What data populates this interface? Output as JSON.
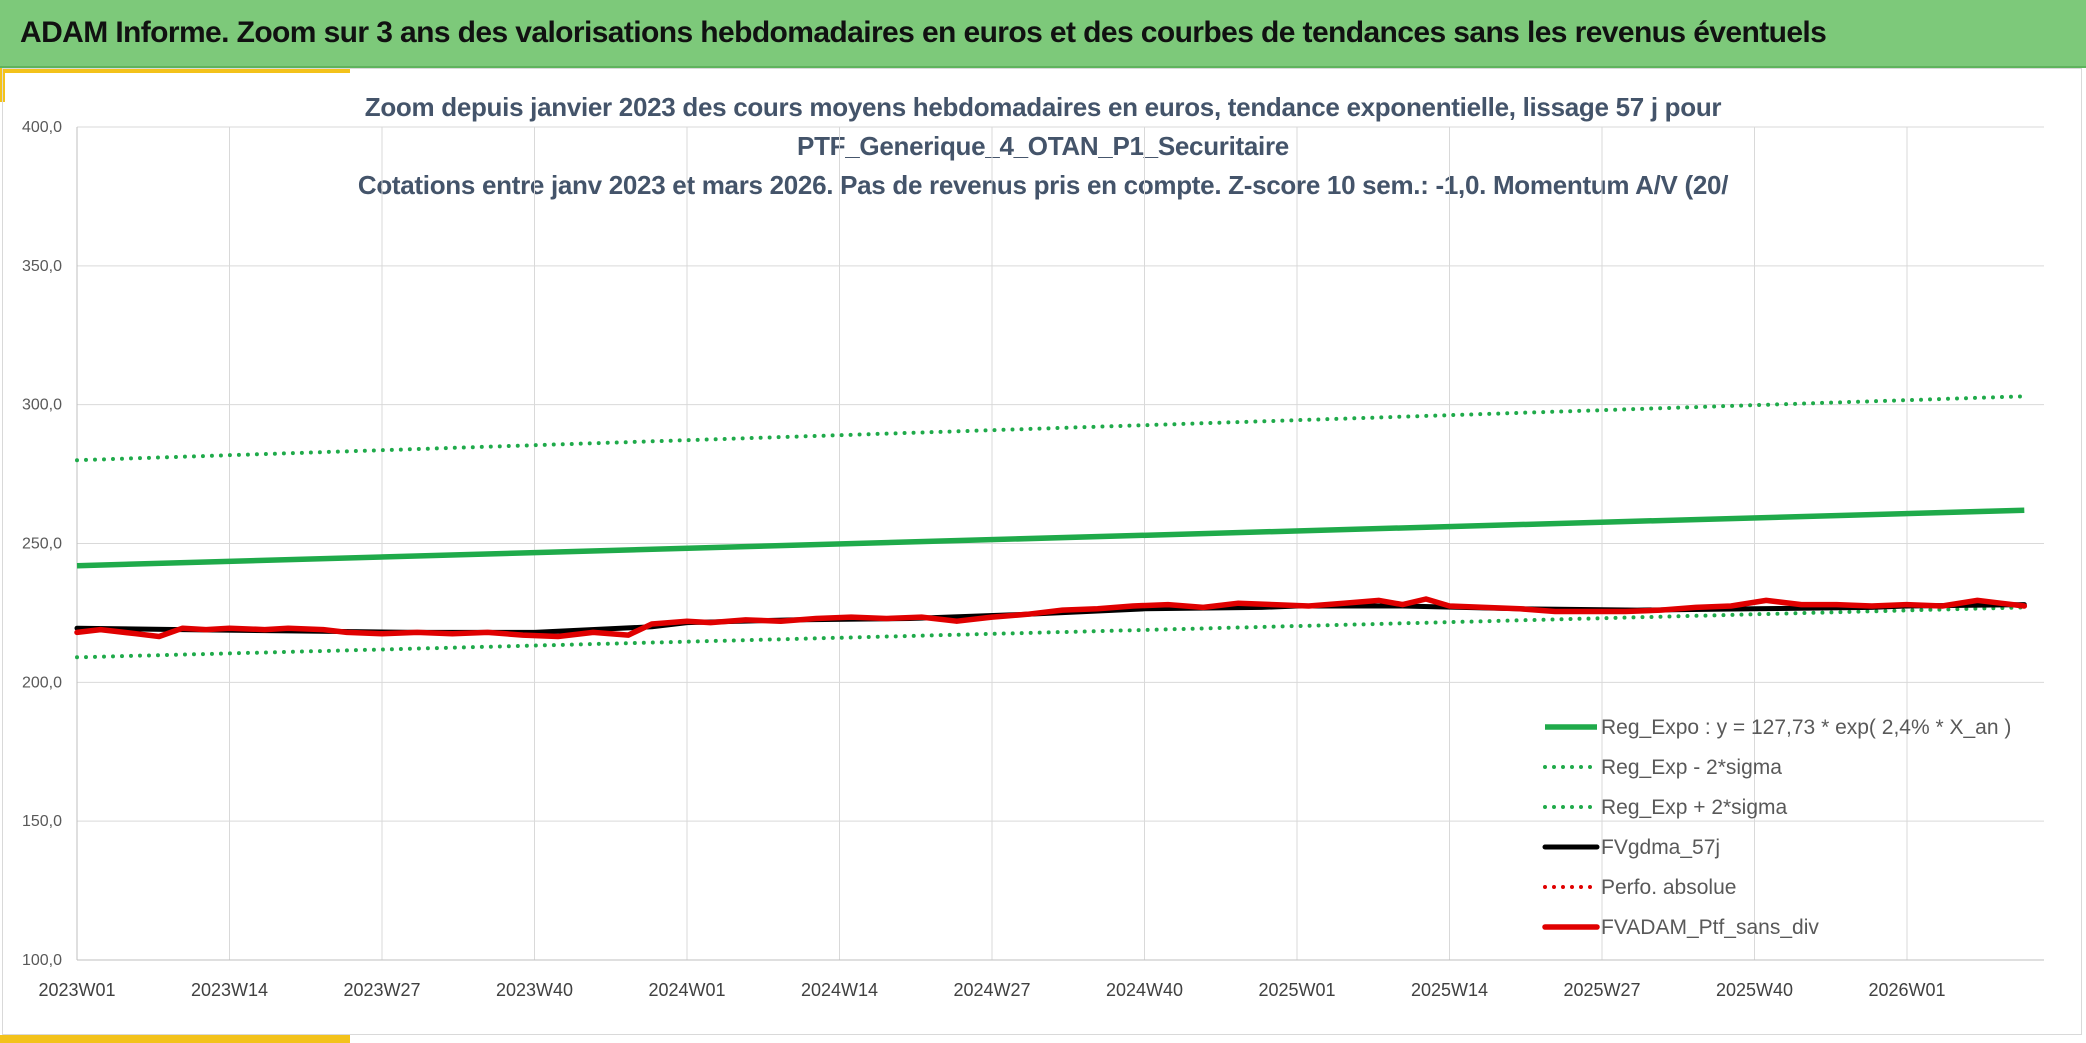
{
  "header": {
    "title": "ADAM Informe. Zoom sur 3 ans des valorisations hebdomadaires en euros et des courbes de tendances sans les revenus éventuels"
  },
  "chart": {
    "title_lines": [
      "Zoom depuis janvier 2023 des cours moyens hebdomadaires en euros, tendance exponentielle, lissage 57 j pour",
      "PTF_Generique_4_OTAN_P1_Securitaire",
      "Cotations entre janv 2023 et mars 2026. Pas de revenus pris en compte. Z-score 10 sem.: -1,0. Momentum A/V (20/"
    ]
  },
  "colors": {
    "header_bg": "#7dc97a",
    "accent": "#f3c21b",
    "reg_green": "#1faa4a",
    "black": "#000000",
    "red": "#e00000",
    "grid": "#d9d9d9"
  },
  "chart_data": {
    "type": "line",
    "title": "Zoom depuis janvier 2023 des cours moyens hebdomadaires en euros, tendance exponentielle, lissage 57 j pour PTF_Generique_4_OTAN_P1_Securitaire Cotations entre janv 2023 et mars 2026. Pas de revenus pris en compte. Z-score 10 sem.: -1,0. Momentum A/V (20/",
    "ylim": [
      100,
      400
    ],
    "y_ticks": [
      "400,0",
      "350,0",
      "300,0",
      "250,0",
      "200,0",
      "150,0",
      "100,0"
    ],
    "x_ticks": [
      "2023W01",
      "2023W14",
      "2023W27",
      "2023W40",
      "2024W01",
      "2024W14",
      "2024W27",
      "2024W40",
      "2025W01",
      "2025W14",
      "2025W27",
      "2025W40",
      "2026W01"
    ],
    "x_range": [
      "2023W01",
      "2026W11"
    ],
    "grid": true,
    "legend_position": "bottom-right",
    "series": [
      {
        "name": "Reg_Expo : y = 127,73 * exp( 2,4% *  X_an )",
        "color": "#1faa4a",
        "style": "solid",
        "x": [
          "2023W01",
          "2026W11"
        ],
        "values": [
          242.0,
          262.0
        ]
      },
      {
        "name": "Reg_Exp - 2*sigma",
        "color": "#1faa4a",
        "style": "dotted",
        "x": [
          "2023W01",
          "2026W11"
        ],
        "values": [
          209.0,
          227.0
        ]
      },
      {
        "name": "Reg_Exp + 2*sigma",
        "color": "#1faa4a",
        "style": "dotted",
        "x": [
          "2023W01",
          "2026W11"
        ],
        "values": [
          280.0,
          303.0
        ]
      },
      {
        "name": "FVgdma_57j",
        "color": "#000000",
        "style": "solid",
        "x": [
          "2023W01",
          "2023W10",
          "2023W20",
          "2023W30",
          "2023W40",
          "2023W50",
          "2024W01",
          "2024W10",
          "2024W20",
          "2024W30",
          "2024W40",
          "2024W50",
          "2025W01",
          "2025W10",
          "2025W20",
          "2025W30",
          "2025W40",
          "2025W50",
          "2026W01",
          "2026W11"
        ],
        "values": [
          219.5,
          219.0,
          218.5,
          218.0,
          218.0,
          220.0,
          221.5,
          222.5,
          223.0,
          224.5,
          226.5,
          227.0,
          227.5,
          227.5,
          226.5,
          226.0,
          226.5,
          227.0,
          227.5,
          228.0
        ]
      },
      {
        "name": "Perfo. absolue",
        "color": "#e00000",
        "style": "dotted",
        "x": [],
        "values": []
      },
      {
        "name": "FVADAM_Ptf_sans_div",
        "color": "#e00000",
        "style": "solid",
        "x": [
          "2023W01",
          "2023W03",
          "2023W06",
          "2023W08",
          "2023W10",
          "2023W12",
          "2023W14",
          "2023W17",
          "2023W19",
          "2023W22",
          "2023W24",
          "2023W27",
          "2023W30",
          "2023W33",
          "2023W36",
          "2023W39",
          "2023W42",
          "2023W45",
          "2023W48",
          "2023W50",
          "2024W01",
          "2024W03",
          "2024W06",
          "2024W09",
          "2024W12",
          "2024W15",
          "2024W18",
          "2024W21",
          "2024W24",
          "2024W27",
          "2024W30",
          "2024W33",
          "2024W36",
          "2024W39",
          "2024W42",
          "2024W45",
          "2024W48",
          "2024W51",
          "2025W02",
          "2025W05",
          "2025W08",
          "2025W10",
          "2025W12",
          "2025W14",
          "2025W17",
          "2025W20",
          "2025W23",
          "2025W26",
          "2025W29",
          "2025W32",
          "2025W35",
          "2025W38",
          "2025W41",
          "2025W44",
          "2025W47",
          "2025W50",
          "2026W01",
          "2026W04",
          "2026W07",
          "2026W09",
          "2026W11"
        ],
        "values": [
          218.0,
          219.0,
          217.5,
          216.5,
          219.5,
          219.0,
          219.5,
          219.0,
          219.5,
          219.0,
          218.0,
          217.5,
          218.0,
          217.5,
          218.0,
          217.0,
          216.5,
          218.0,
          217.0,
          221.0,
          222.0,
          221.5,
          222.5,
          222.0,
          223.0,
          223.5,
          223.0,
          223.5,
          222.0,
          223.5,
          224.5,
          226.0,
          226.5,
          227.5,
          228.0,
          227.0,
          228.5,
          228.0,
          227.5,
          228.5,
          229.5,
          228.0,
          230.0,
          227.5,
          227.0,
          226.5,
          225.5,
          225.5,
          225.5,
          226.0,
          227.0,
          227.5,
          229.5,
          228.0,
          228.0,
          227.5,
          228.0,
          227.5,
          229.5,
          228.5,
          227.5
        ]
      }
    ]
  }
}
